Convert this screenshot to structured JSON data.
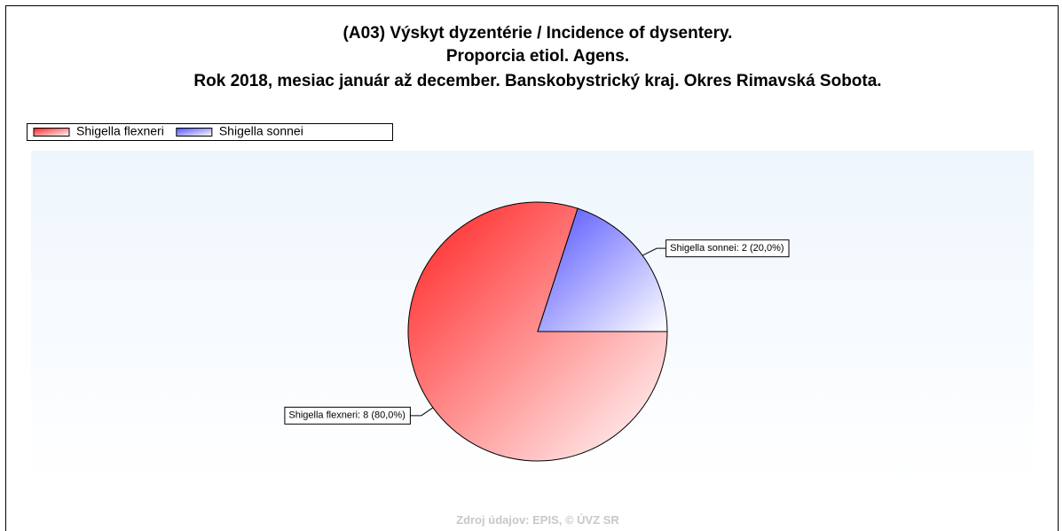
{
  "chart_data": {
    "type": "pie",
    "title": "(A03) Výskyt dyzentérie / Incidence of dysentery.",
    "subtitle": [
      "Proporcia etiol. Agens.",
      "Rok 2018, mesiac január až december. Banskobystrický kraj. Okres Rimavská Sobota."
    ],
    "categories": [
      "Shigella flexneri",
      "Shigella sonnei"
    ],
    "values": [
      8,
      2
    ],
    "value_labels": [
      "Shigella flexneri: 8 (80,0%)",
      "Shigella sonnei: 2 (20,0%)"
    ],
    "colors": [
      "#ff2020",
      "#5050ff"
    ],
    "legend": "top-left",
    "source": "Zdroj údajov: EPIS, © ÚVZ SR"
  }
}
